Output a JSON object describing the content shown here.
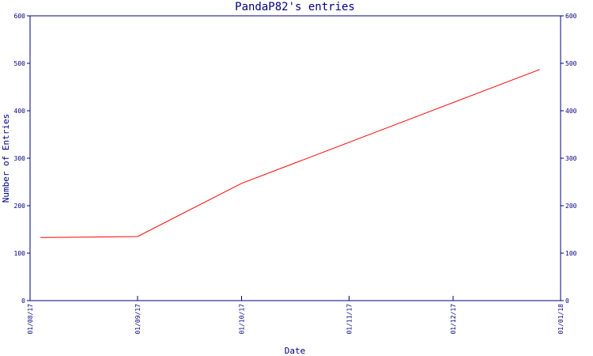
{
  "chart_data": {
    "type": "line",
    "title": "PandaP82's entries",
    "xlabel": "Date",
    "ylabel": "Number of Entries",
    "x_ticks": [
      "01/08/17",
      "01/09/17",
      "01/10/17",
      "01/11/17",
      "01/12/17",
      "01/01/18"
    ],
    "xlim": [
      "2017-08-01",
      "2018-01-01"
    ],
    "ylim": [
      0,
      600
    ],
    "y_ticks": [
      0,
      100,
      200,
      300,
      400,
      500,
      600
    ],
    "grid": false,
    "series": [
      {
        "color": "#ff0000",
        "x": [
          "2017-08-04",
          "2017-08-20",
          "2017-09-01",
          "2017-10-01",
          "2017-12-26"
        ],
        "values": [
          133,
          134,
          135,
          247,
          487
        ]
      }
    ]
  },
  "colors": {
    "axis": "#000080",
    "background": "#ffffff"
  }
}
